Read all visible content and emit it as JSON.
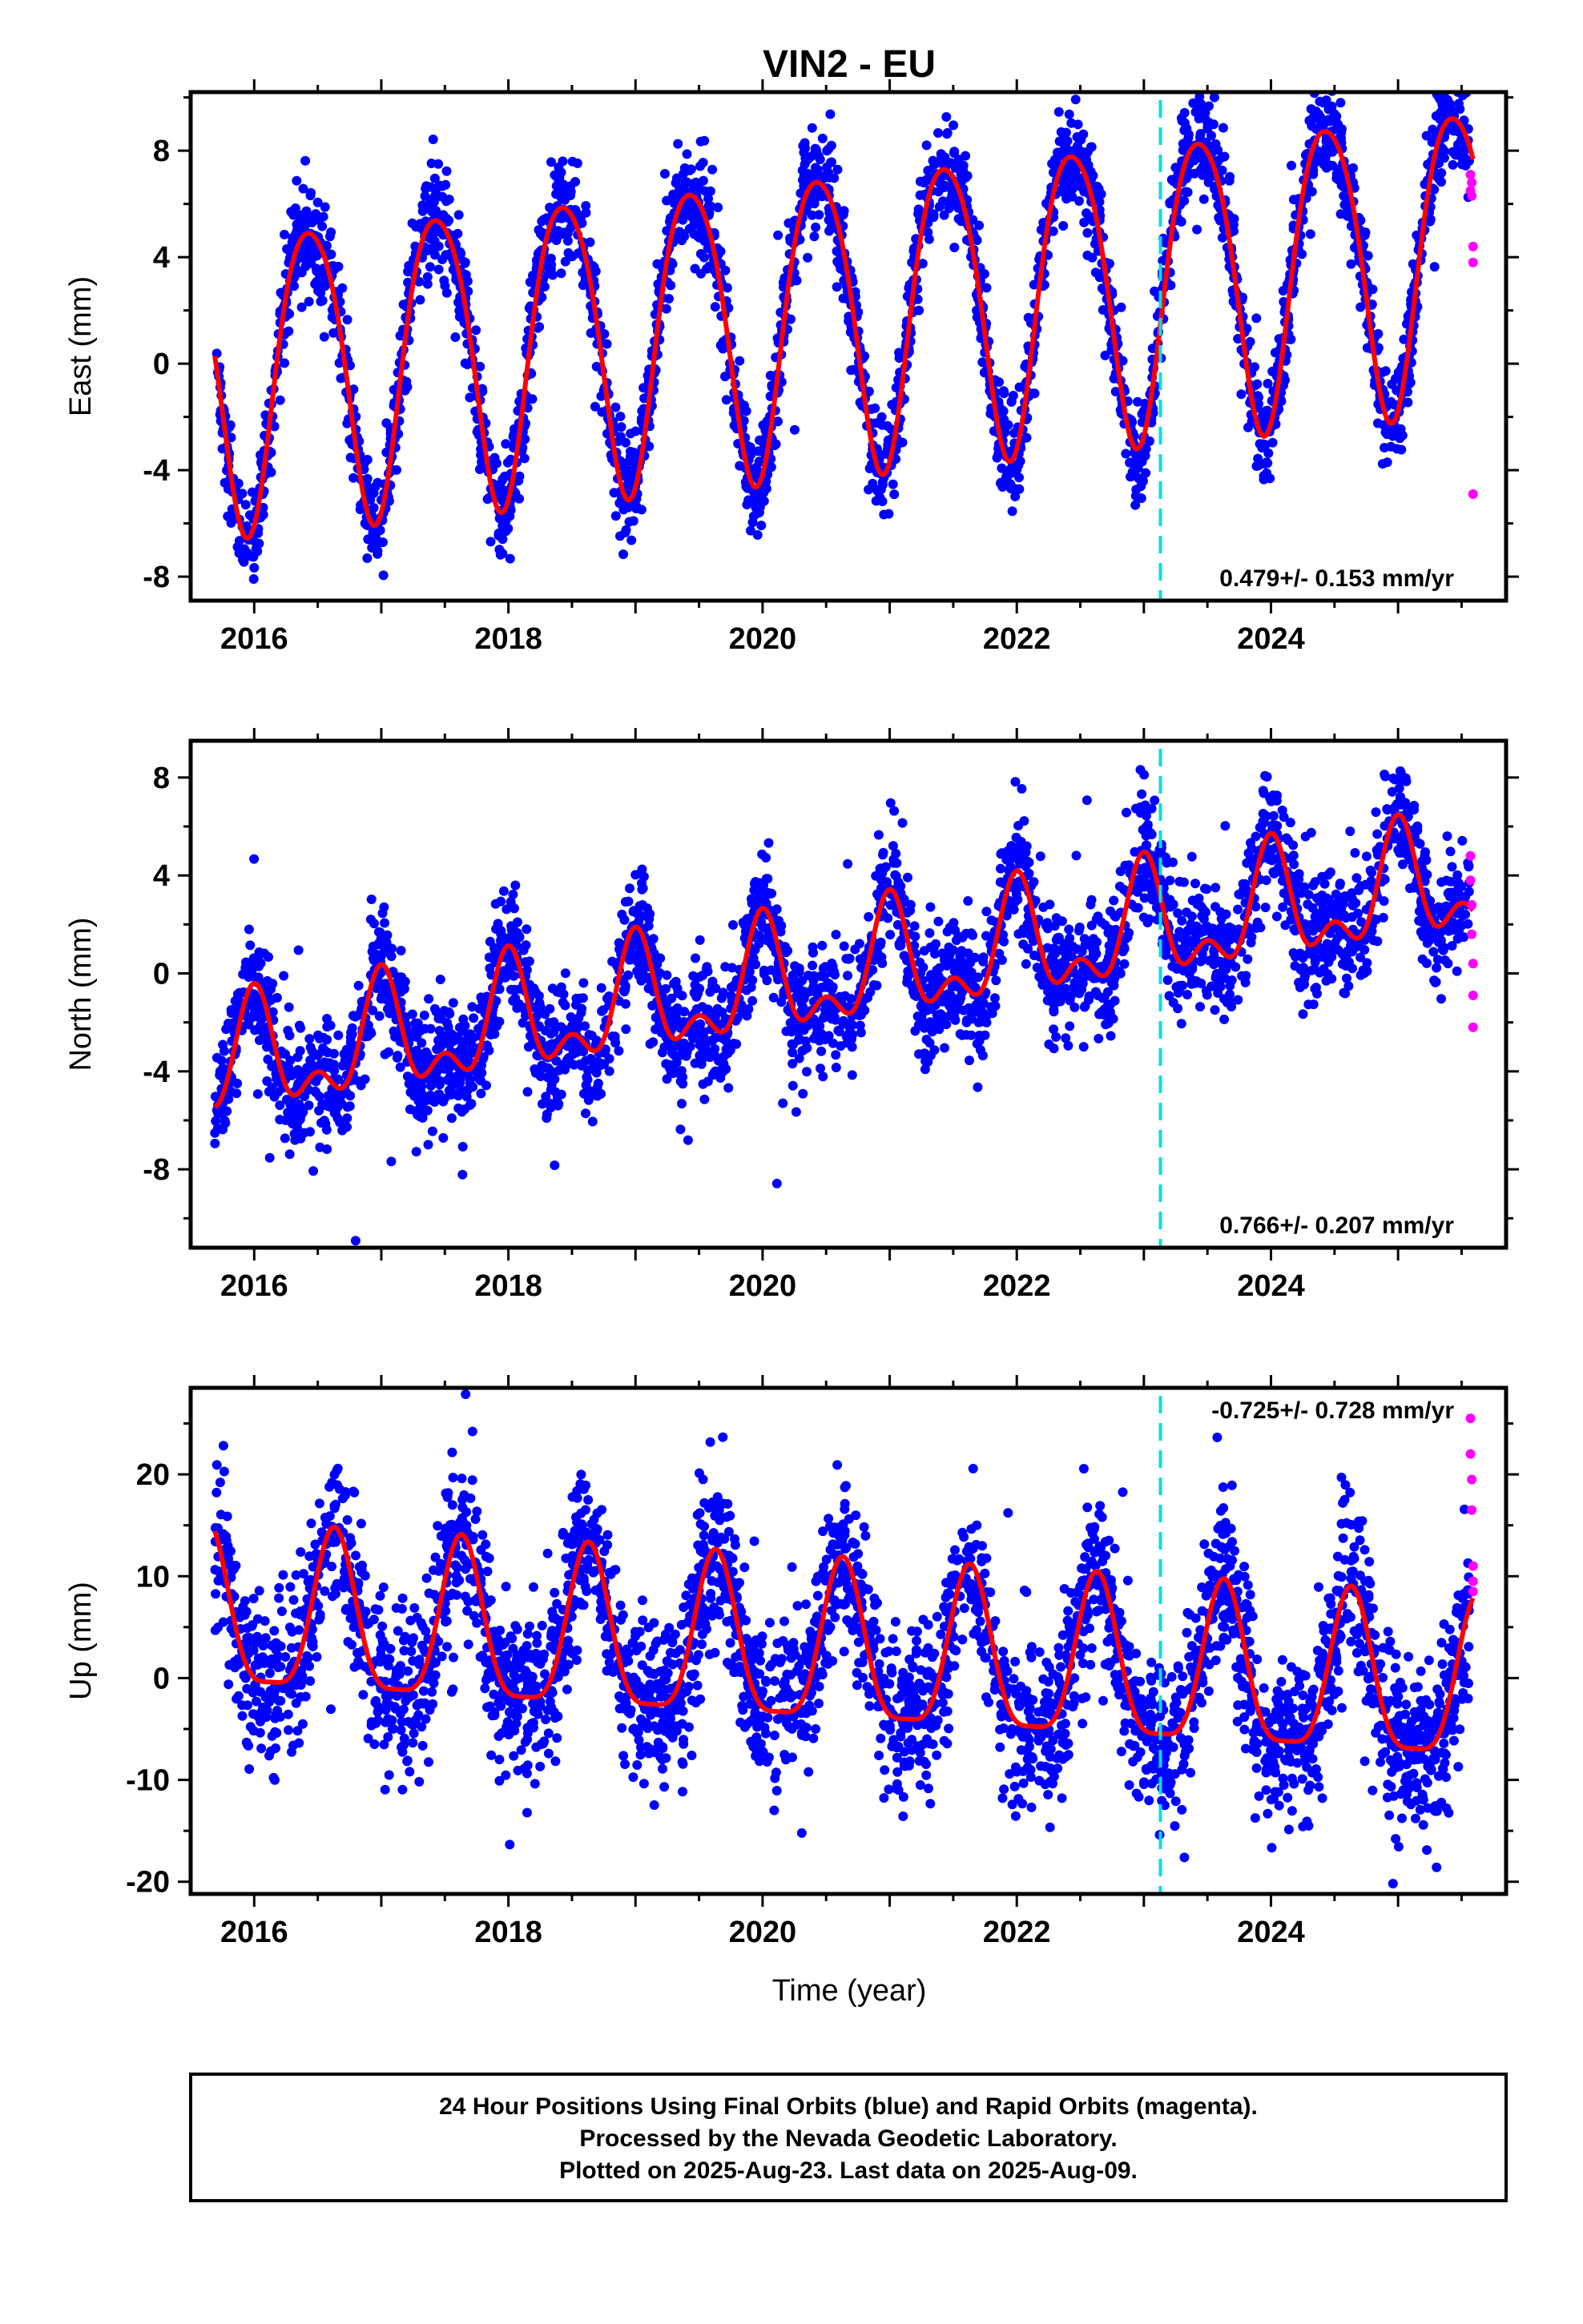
{
  "title": "VIN2 - EU",
  "xlabel": "Time (year)",
  "footer": {
    "line1": "24 Hour Positions Using Final Orbits (blue) and Rapid Orbits (magenta).",
    "line2": "Processed by the Nevada Geodetic Laboratory.",
    "line3": "Plotted on 2025-Aug-23. Last data on 2025-Aug-09."
  },
  "colors": {
    "final_orbits": "#0000ff",
    "rapid_orbits": "#ff00ff",
    "model_fit": "#ff0000",
    "event_line": "#00e0e0",
    "axis": "#000000"
  },
  "chart_data": [
    {
      "type": "scatter",
      "component": "East",
      "ylabel": "East (mm)",
      "xlim": [
        2015.5,
        2025.85
      ],
      "ylim": [
        -8.9,
        10.2
      ],
      "x_ticks": [
        2016,
        2018,
        2020,
        2022,
        2024
      ],
      "y_ticks": [
        -8,
        -4,
        0,
        4,
        8
      ],
      "rate_label": "0.479+/- 0.153 mm/yr",
      "rate_label_position": "bottom-right",
      "event_line_year": 2023.13,
      "trend_mm_per_yr": 0.479,
      "fit": {
        "offset": -0.25,
        "annual_amp": 5.6,
        "annual_peak": 0.44,
        "semiannual_amp": 0.7,
        "semiannual_peak": 0.21,
        "noise_sd": 0.95
      },
      "series": [
        {
          "name": "Final Orbits",
          "color": "#0000ff",
          "x_start": 2015.69,
          "x_end": 2025.56,
          "points_per_year": 330
        },
        {
          "name": "Rapid Orbits",
          "color": "#ff00ff",
          "x": [
            2025.57,
            2025.57,
            2025.58,
            2025.58,
            2025.59,
            2025.59,
            2025.59
          ],
          "y": [
            7.1,
            6.5,
            6.8,
            6.3,
            3.8,
            4.4,
            -4.9
          ]
        },
        {
          "name": "Model Fit",
          "color": "#ff0000",
          "x_start": 2015.69,
          "x_end": 2025.59
        }
      ]
    },
    {
      "type": "scatter",
      "component": "North",
      "ylabel": "North (mm)",
      "xlim": [
        2015.5,
        2025.85
      ],
      "ylim": [
        -11.2,
        9.5
      ],
      "x_ticks": [
        2016,
        2018,
        2020,
        2022,
        2024
      ],
      "y_ticks": [
        -8,
        -4,
        0,
        4,
        8
      ],
      "rate_label": "0.766+/- 0.207 mm/yr",
      "rate_label_position": "bottom-right",
      "event_line_year": 2023.13,
      "trend_mm_per_yr": 0.766,
      "fit": {
        "offset": -3.6,
        "annual_amp": 2.0,
        "annual_peak": 0.0,
        "semiannual_amp": 1.2,
        "semiannual_peak": 0.5,
        "noise_sd": 1.25
      },
      "series": [
        {
          "name": "Final Orbits",
          "color": "#0000ff",
          "x_start": 2015.69,
          "x_end": 2025.56,
          "points_per_year": 330
        },
        {
          "name": "Rapid Orbits",
          "color": "#ff00ff",
          "x": [
            2025.57,
            2025.57,
            2025.58,
            2025.58,
            2025.59,
            2025.59,
            2025.59
          ],
          "y": [
            4.8,
            3.8,
            2.8,
            1.6,
            0.4,
            -0.9,
            -2.2
          ]
        },
        {
          "name": "Model Fit",
          "color": "#ff0000",
          "x_start": 2015.69,
          "x_end": 2025.59
        }
      ]
    },
    {
      "type": "scatter",
      "component": "Up",
      "ylabel": "Up (mm)",
      "xlim": [
        2015.5,
        2025.85
      ],
      "ylim": [
        -21.2,
        28.5
      ],
      "x_ticks": [
        2016,
        2018,
        2020,
        2022,
        2024
      ],
      "y_ticks": [
        -20,
        -10,
        0,
        10,
        20
      ],
      "rate_label": "-0.725+/- 0.728 mm/yr",
      "rate_label_position": "top-right",
      "event_line_year": 2023.13,
      "trend_mm_per_yr": -0.725,
      "fit": {
        "offset": 5.5,
        "annual_amp": 7.8,
        "annual_peak": 0.63,
        "semiannual_amp": 2.0,
        "semiannual_peak": 0.63,
        "noise_sd": 4.0
      },
      "series": [
        {
          "name": "Final Orbits",
          "color": "#0000ff",
          "x_start": 2015.69,
          "x_end": 2025.56,
          "points_per_year": 330
        },
        {
          "name": "Rapid Orbits",
          "color": "#ff00ff",
          "x": [
            2025.57,
            2025.57,
            2025.58,
            2025.58,
            2025.59,
            2025.59,
            2025.59
          ],
          "y": [
            25.5,
            22.0,
            19.5,
            16.5,
            11.0,
            9.5,
            8.5
          ]
        },
        {
          "name": "Model Fit",
          "color": "#ff0000",
          "x_start": 2015.69,
          "x_end": 2025.59
        }
      ]
    }
  ]
}
